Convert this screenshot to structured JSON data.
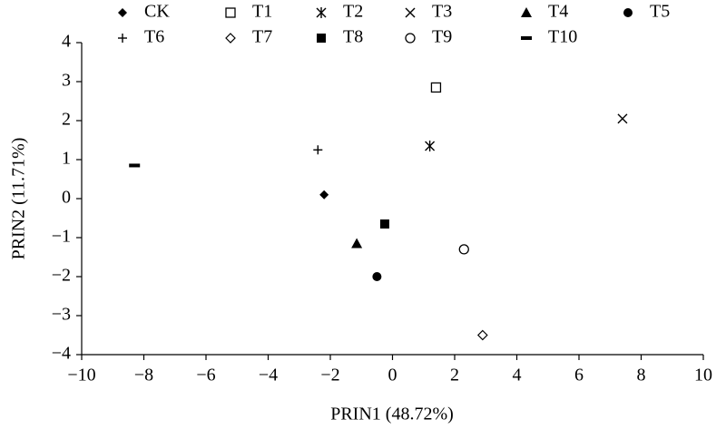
{
  "chart_data": {
    "type": "scatter",
    "xlabel": "PRIN1 (48.72%)",
    "ylabel": "PRIN2 (11.71%)",
    "xlim": [
      -10,
      10
    ],
    "xticks": [
      {
        "value": -10,
        "label": "−10"
      },
      {
        "value": -8,
        "label": "−8"
      },
      {
        "value": -6,
        "label": "−6"
      },
      {
        "value": -4,
        "label": "−4"
      },
      {
        "value": -2,
        "label": "−2"
      },
      0,
      2,
      4,
      6,
      8,
      10
    ],
    "ylim": [
      -4,
      4
    ],
    "yticks": [
      {
        "value": -4,
        "label": "−4"
      },
      {
        "value": -3,
        "label": "−3"
      },
      {
        "value": -2,
        "label": "−2"
      },
      {
        "value": -1,
        "label": "−1"
      },
      0,
      1,
      2,
      3,
      4
    ],
    "legend": "top",
    "series": [
      {
        "name": "CK",
        "marker": "diamond-filled",
        "color": "#000000",
        "x": [
          -2.2
        ],
        "values": [
          0.1
        ]
      },
      {
        "name": "T1",
        "marker": "square-open",
        "color": "#000000",
        "x": [
          1.4
        ],
        "values": [
          2.85
        ]
      },
      {
        "name": "T2",
        "marker": "asterisk",
        "color": "#000000",
        "x": [
          1.2
        ],
        "values": [
          1.35
        ]
      },
      {
        "name": "T3",
        "marker": "cross",
        "color": "#000000",
        "x": [
          7.4
        ],
        "values": [
          2.05
        ]
      },
      {
        "name": "T4",
        "marker": "triangle-filled",
        "color": "#000000",
        "x": [
          -1.15
        ],
        "values": [
          -1.15
        ]
      },
      {
        "name": "T5",
        "marker": "circle-filled",
        "color": "#000000",
        "x": [
          -0.5
        ],
        "values": [
          -2.0
        ]
      },
      {
        "name": "T6",
        "marker": "plus",
        "color": "#000000",
        "x": [
          -2.4
        ],
        "values": [
          1.25
        ]
      },
      {
        "name": "T7",
        "marker": "diamond-open",
        "color": "#000000",
        "x": [
          2.9
        ],
        "values": [
          -3.5
        ]
      },
      {
        "name": "T8",
        "marker": "square-filled",
        "color": "#000000",
        "x": [
          -0.25
        ],
        "values": [
          -0.65
        ]
      },
      {
        "name": "T9",
        "marker": "circle-open",
        "color": "#000000",
        "x": [
          2.3
        ],
        "values": [
          -1.3
        ]
      },
      {
        "name": "T10",
        "marker": "dash",
        "color": "#000000",
        "x": [
          -8.3
        ],
        "values": [
          0.85
        ]
      }
    ]
  }
}
